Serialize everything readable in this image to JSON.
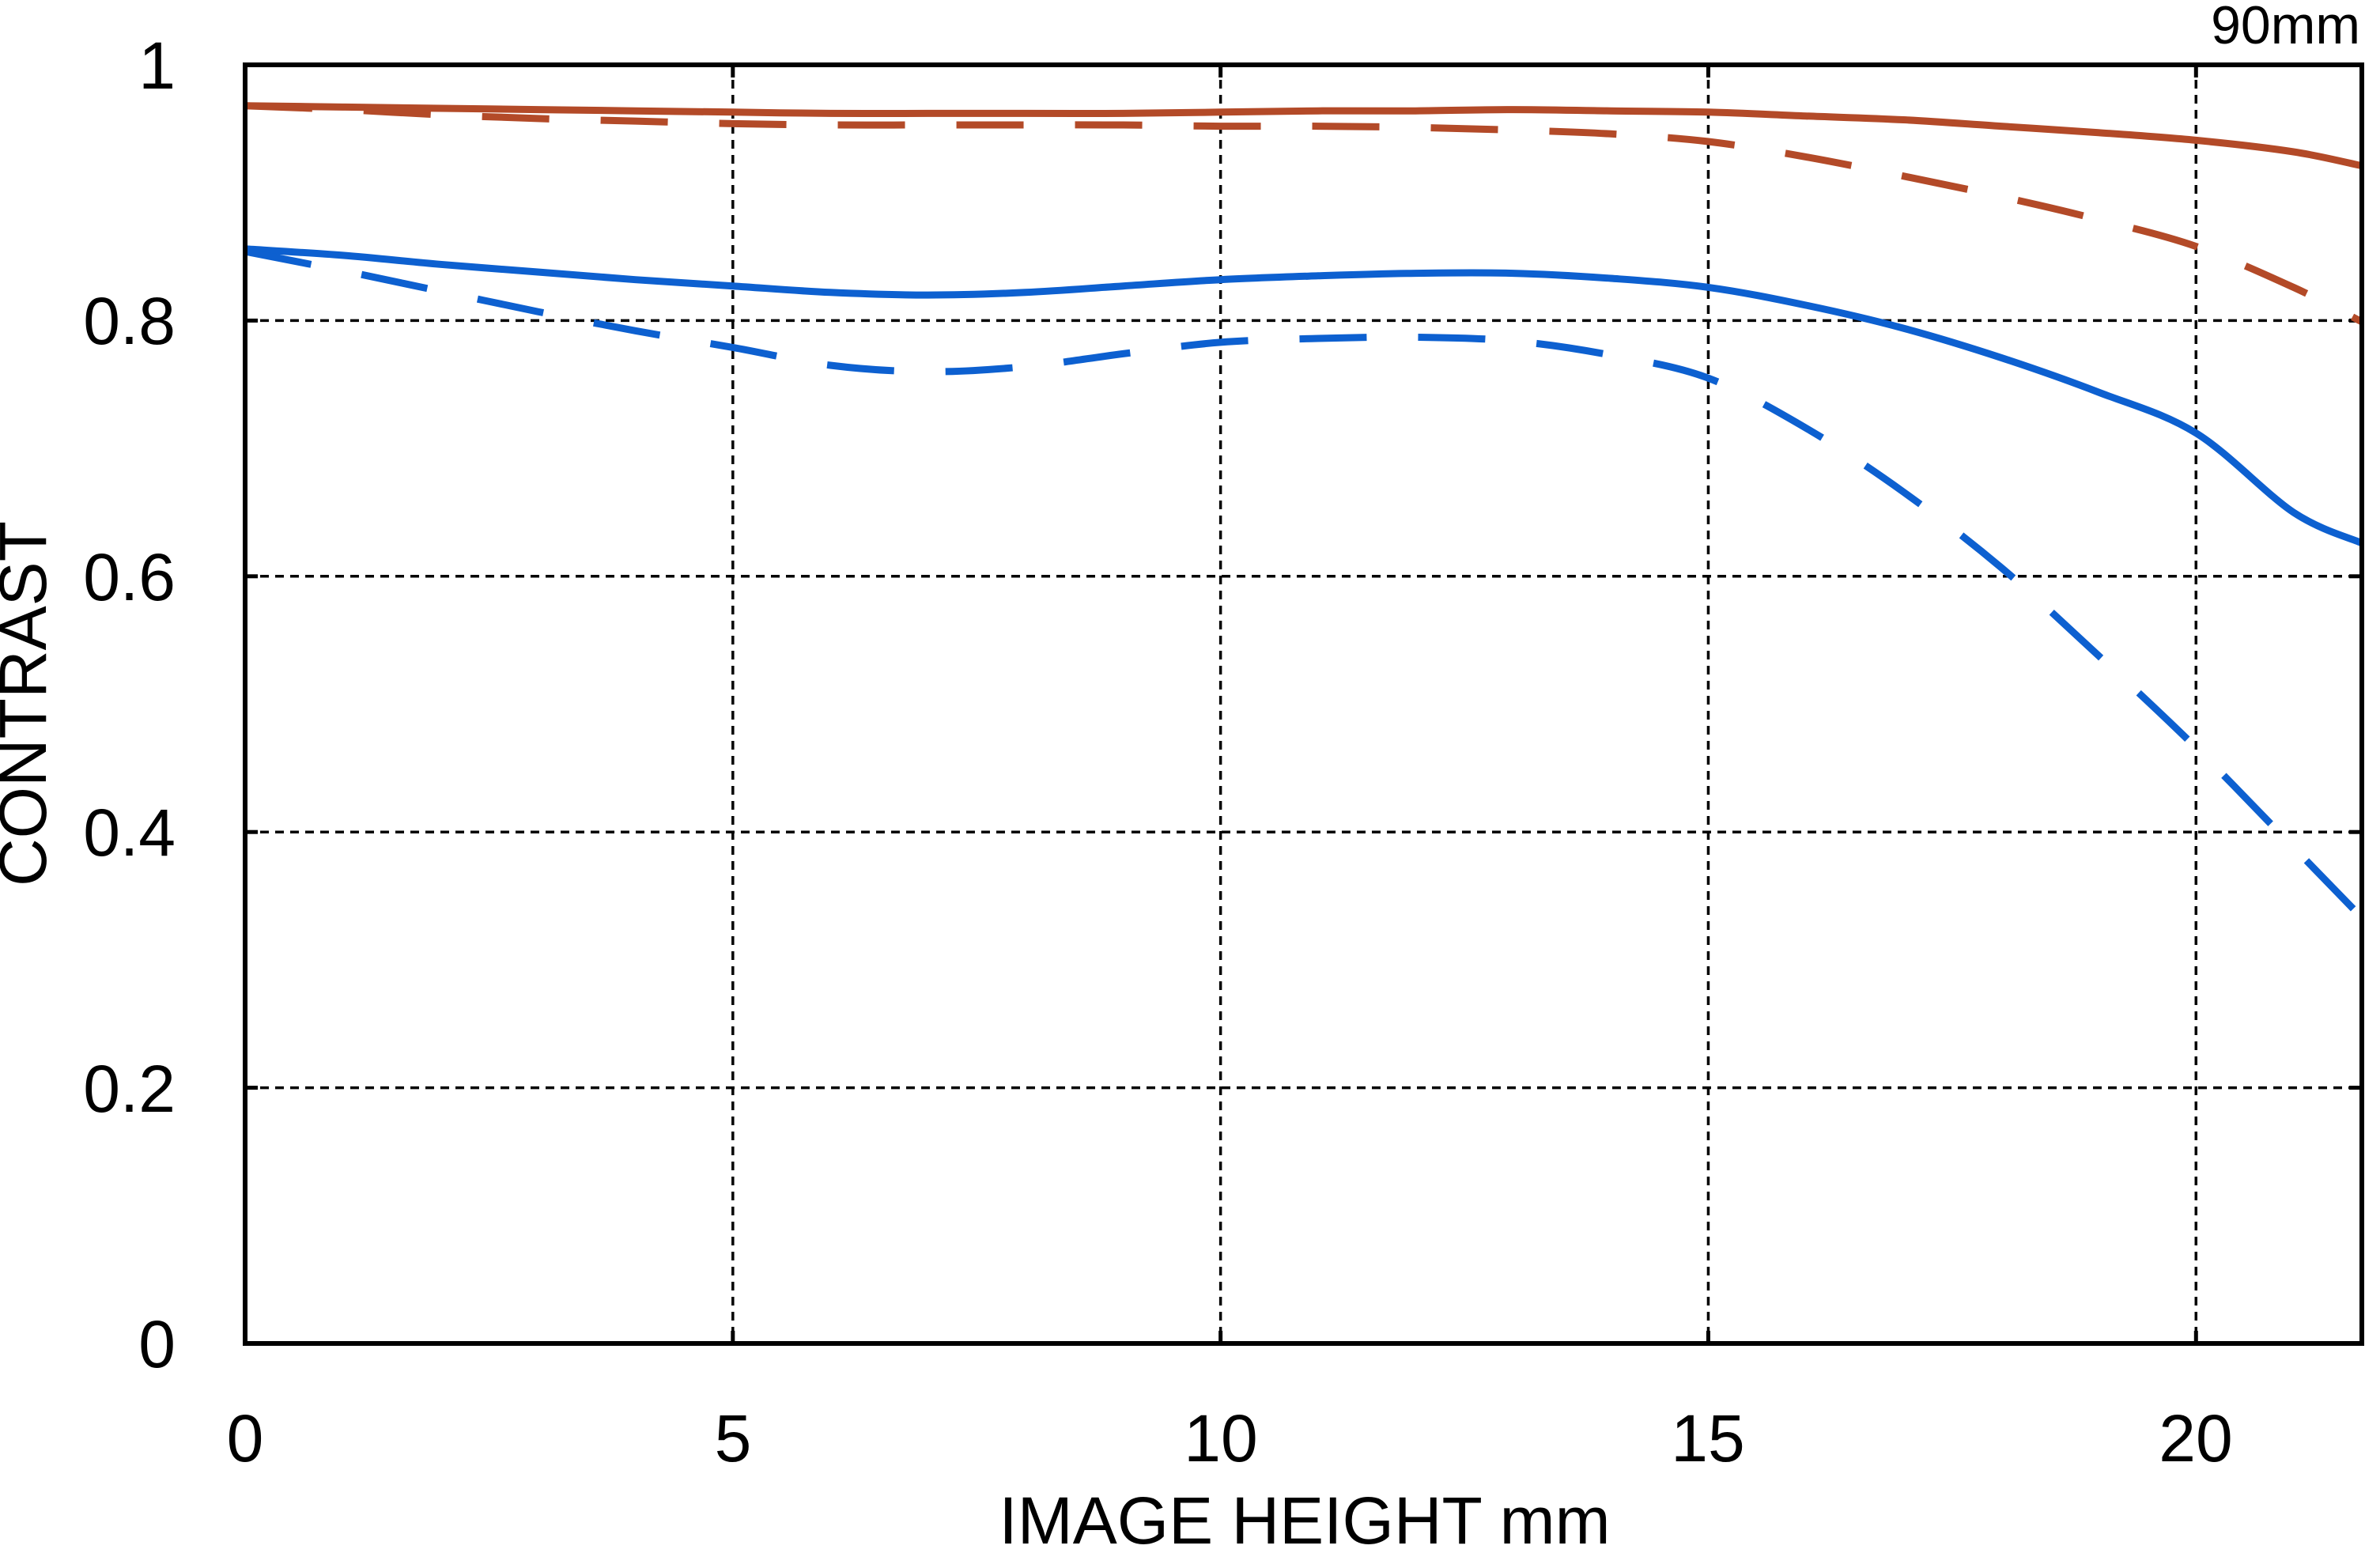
{
  "chart_data": {
    "type": "line",
    "title": "90mm",
    "xlabel": "IMAGE HEIGHT  mm",
    "ylabel": "CONTRAST",
    "xlim": [
      0,
      21.7
    ],
    "ylim": [
      0,
      1
    ],
    "grid": true,
    "legend_position": "none",
    "x_ticks": [
      "0",
      "5",
      "10",
      "15",
      "20"
    ],
    "x_tick_values": [
      0,
      5,
      10,
      15,
      20
    ],
    "y_ticks": [
      "1",
      "0.8",
      "0.6",
      "0.4",
      "0.2",
      "0"
    ],
    "y_tick_values": [
      1,
      0.8,
      0.6,
      0.4,
      0.2,
      0
    ],
    "x_gridlines": [
      5,
      10,
      15,
      20
    ],
    "y_gridlines": [
      0.2,
      0.4,
      0.6,
      0.8
    ],
    "colors": {
      "red": "#b34a28",
      "blue": "#0d60d0",
      "axis": "#000000"
    },
    "x": [
      0,
      1,
      2,
      3,
      4,
      5,
      6,
      7,
      8,
      9,
      10,
      11,
      12,
      13,
      14,
      15,
      16,
      17,
      18,
      19,
      20,
      21,
      21.7
    ],
    "series": [
      {
        "name": "red-solid",
        "color": "#b34a28",
        "style": "solid",
        "values": [
          0.968,
          0.967,
          0.966,
          0.965,
          0.964,
          0.963,
          0.962,
          0.962,
          0.962,
          0.962,
          0.963,
          0.964,
          0.964,
          0.965,
          0.964,
          0.963,
          0.96,
          0.957,
          0.952,
          0.947,
          0.941,
          0.932,
          0.921
        ]
      },
      {
        "name": "red-dashed",
        "color": "#b34a28",
        "style": "dashed",
        "values": [
          0.968,
          0.965,
          0.961,
          0.958,
          0.956,
          0.954,
          0.953,
          0.953,
          0.953,
          0.953,
          0.952,
          0.952,
          0.951,
          0.949,
          0.946,
          0.94,
          0.928,
          0.913,
          0.897,
          0.879,
          0.858,
          0.826,
          0.799
        ]
      },
      {
        "name": "blue-solid",
        "color": "#0d60d0",
        "style": "solid",
        "values": [
          0.856,
          0.851,
          0.844,
          0.838,
          0.832,
          0.827,
          0.822,
          0.82,
          0.822,
          0.827,
          0.832,
          0.835,
          0.837,
          0.837,
          0.833,
          0.826,
          0.812,
          0.794,
          0.771,
          0.744,
          0.712,
          0.65,
          0.626
        ]
      },
      {
        "name": "blue-dashed",
        "color": "#0d60d0",
        "style": "dashed",
        "values": [
          0.854,
          0.839,
          0.823,
          0.807,
          0.792,
          0.779,
          0.765,
          0.76,
          0.764,
          0.774,
          0.783,
          0.786,
          0.787,
          0.784,
          0.773,
          0.755,
          0.716,
          0.666,
          0.607,
          0.538,
          0.466,
          0.388,
          0.333
        ]
      }
    ]
  }
}
